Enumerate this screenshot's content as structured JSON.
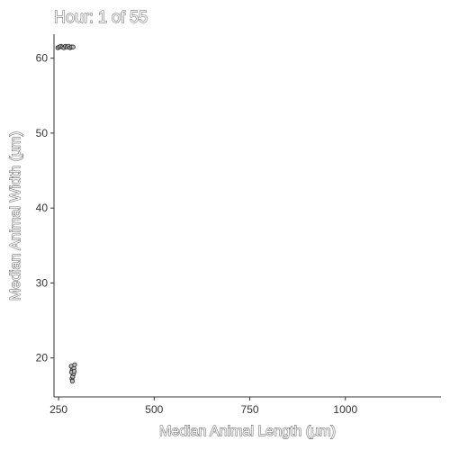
{
  "chart_data": {
    "type": "scatter",
    "title": "Hour: 1 of 55",
    "xlabel": "Median Animal Length (µm)",
    "ylabel": "Median Animal Width (µm)",
    "xlim": [
      238,
      1250
    ],
    "ylim": [
      14.8,
      63.2
    ],
    "xticks": [
      {
        "value": 250,
        "label": "250"
      },
      {
        "value": 500,
        "label": "500"
      },
      {
        "value": 750,
        "label": "750"
      },
      {
        "value": 1000,
        "label": "1000"
      }
    ],
    "yticks": [
      {
        "value": 20,
        "label": "20"
      },
      {
        "value": 30,
        "label": "30"
      },
      {
        "value": 40,
        "label": "40"
      },
      {
        "value": 50,
        "label": "50"
      },
      {
        "value": 60,
        "label": "60"
      }
    ],
    "grid": false,
    "points": [
      {
        "x": 248,
        "y": 61.4
      },
      {
        "x": 252,
        "y": 61.5
      },
      {
        "x": 256,
        "y": 61.6
      },
      {
        "x": 260,
        "y": 61.5
      },
      {
        "x": 264,
        "y": 61.4
      },
      {
        "x": 268,
        "y": 61.6
      },
      {
        "x": 272,
        "y": 61.5
      },
      {
        "x": 276,
        "y": 61.6
      },
      {
        "x": 280,
        "y": 61.4
      },
      {
        "x": 284,
        "y": 61.5
      },
      {
        "x": 288,
        "y": 61.5
      },
      {
        "x": 283,
        "y": 18.9
      },
      {
        "x": 286,
        "y": 18.4
      },
      {
        "x": 288,
        "y": 17.8
      },
      {
        "x": 285,
        "y": 17.2
      },
      {
        "x": 290,
        "y": 18.6
      },
      {
        "x": 292,
        "y": 19.1
      },
      {
        "x": 287,
        "y": 17.5
      },
      {
        "x": 289,
        "y": 17.9
      },
      {
        "x": 284,
        "y": 18.1
      },
      {
        "x": 291,
        "y": 18.2
      },
      {
        "x": 286,
        "y": 16.9
      }
    ]
  }
}
